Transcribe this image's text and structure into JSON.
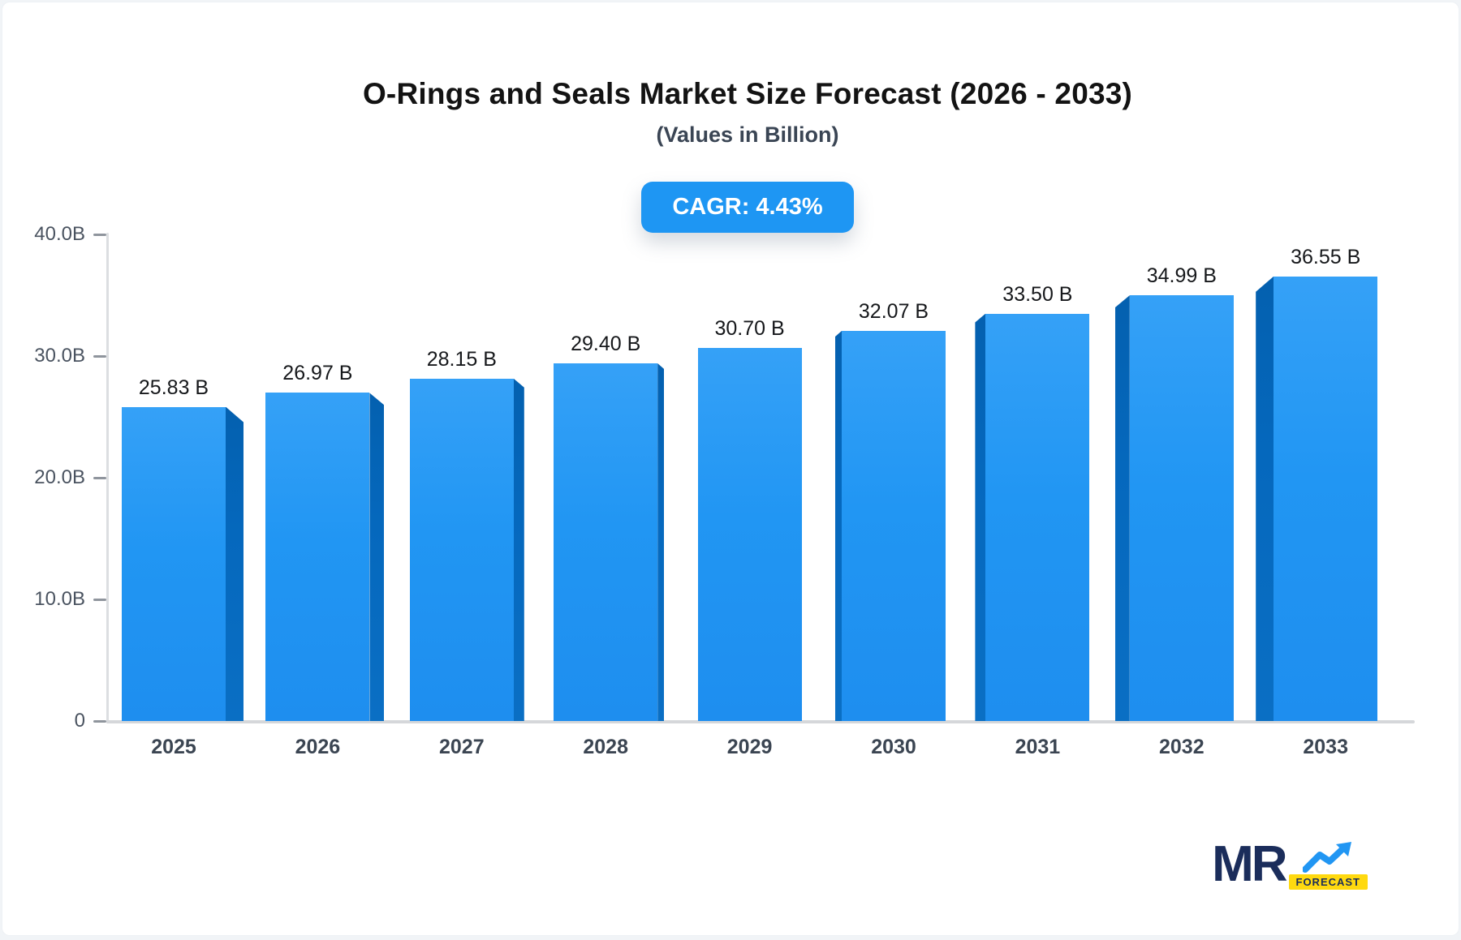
{
  "header": {
    "title": "O-Rings and Seals Market Size Forecast (2026 - 2033)",
    "subtitle": "(Values in Billion)",
    "cagr_label": "CAGR: 4.43%"
  },
  "chart_data": {
    "type": "bar",
    "title": "O-Rings and Seals Market Size Forecast (2026 - 2033)",
    "subtitle": "(Values in Billion)",
    "annotation": "CAGR: 4.43%",
    "categories": [
      "2025",
      "2026",
      "2027",
      "2028",
      "2029",
      "2030",
      "2031",
      "2032",
      "2033"
    ],
    "values": [
      25.83,
      26.97,
      28.15,
      29.4,
      30.7,
      32.07,
      33.5,
      34.99,
      36.55
    ],
    "value_labels": [
      "25.83 B",
      "26.97 B",
      "28.15 B",
      "29.40 B",
      "30.70 B",
      "32.07 B",
      "33.50 B",
      "34.99 B",
      "36.55 B"
    ],
    "xlabel": "",
    "ylabel": "",
    "ylim": [
      0,
      40
    ],
    "yticks": [
      {
        "label": "40.0B",
        "value": 40
      },
      {
        "label": "30.0B",
        "value": 30
      },
      {
        "label": "20.0B",
        "value": 20
      },
      {
        "label": "10.0B",
        "value": 10
      },
      {
        "label": "0",
        "value": 0
      }
    ],
    "grid": false,
    "legend": false,
    "bar_style": "3d-perspective-center-vanishing"
  },
  "colors": {
    "bar_face": "#2196f3",
    "bar_side": "#0568bd",
    "badge_background": "#1e96f3",
    "badge_text": "#ffffff",
    "axis_line": "#d5d7da",
    "tick_text": "#4a5360",
    "logo_navy": "#1b2d5b",
    "logo_yellow": "#ffd90f",
    "logo_arrow_blue": "#2196f3"
  },
  "logo": {
    "mr": "MR",
    "forecast": "FORECAST",
    "icon": "trend-up-arrow-icon"
  }
}
